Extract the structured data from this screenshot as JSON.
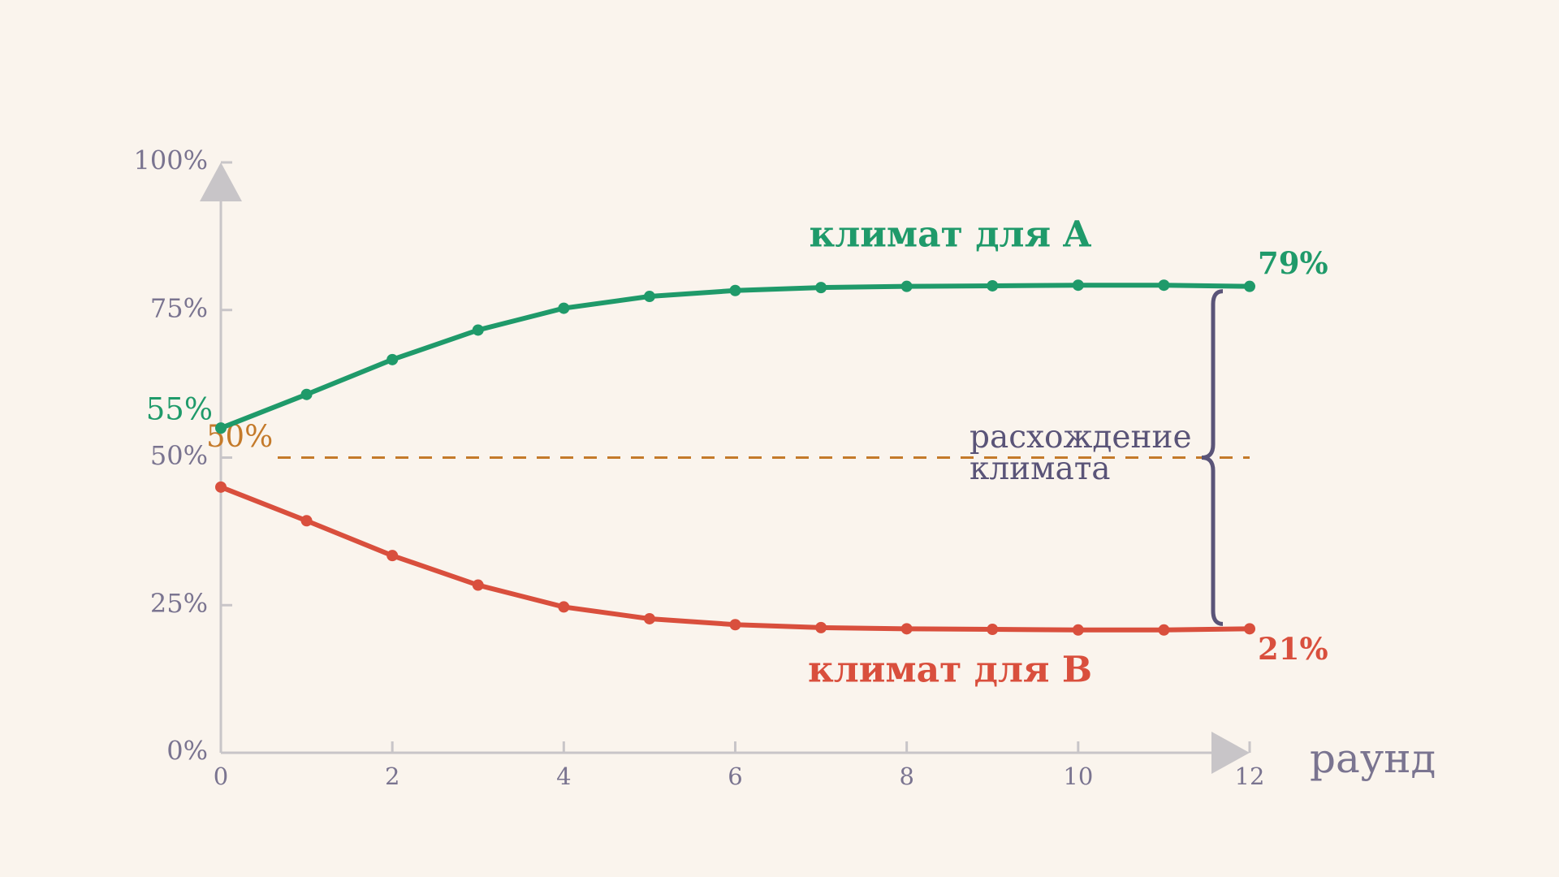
{
  "chart_data": {
    "type": "line",
    "x": [
      0,
      1,
      2,
      3,
      4,
      5,
      6,
      7,
      8,
      9,
      10,
      11,
      12
    ],
    "xlim": [
      0,
      12
    ],
    "xticks": [
      0,
      2,
      4,
      6,
      8,
      10,
      12
    ],
    "ylim": [
      0,
      100
    ],
    "yticks": [
      {
        "value": 0,
        "label": "0%"
      },
      {
        "value": 25,
        "label": "25%"
      },
      {
        "value": 50,
        "label": "50%"
      },
      {
        "value": 75,
        "label": "75%"
      },
      {
        "value": 100,
        "label": "100%"
      }
    ],
    "xlabel": "раунд",
    "series": [
      {
        "name": "климат для A",
        "color": "#1f9a6a",
        "values": [
          55,
          60.7,
          66.6,
          71.6,
          75.3,
          77.3,
          78.3,
          78.8,
          79,
          79.1,
          79.2,
          79.2,
          79
        ],
        "value_labels": [
          "55%",
          null,
          null,
          null,
          null,
          null,
          null,
          null,
          null,
          null,
          null,
          null,
          "79%"
        ]
      },
      {
        "name": "климат для B",
        "color": "#d94f3d",
        "values": [
          45,
          39.3,
          33.4,
          28.4,
          24.7,
          22.7,
          21.7,
          21.2,
          21,
          20.9,
          20.8,
          20.8,
          21
        ],
        "value_labels": [
          null,
          null,
          null,
          null,
          null,
          null,
          null,
          null,
          null,
          null,
          null,
          null,
          "21%"
        ]
      }
    ],
    "reference_line": {
      "value": 50,
      "label": "50%",
      "color": "#c47a2a"
    },
    "annotation": [
      "расхождение",
      "климата"
    ]
  }
}
